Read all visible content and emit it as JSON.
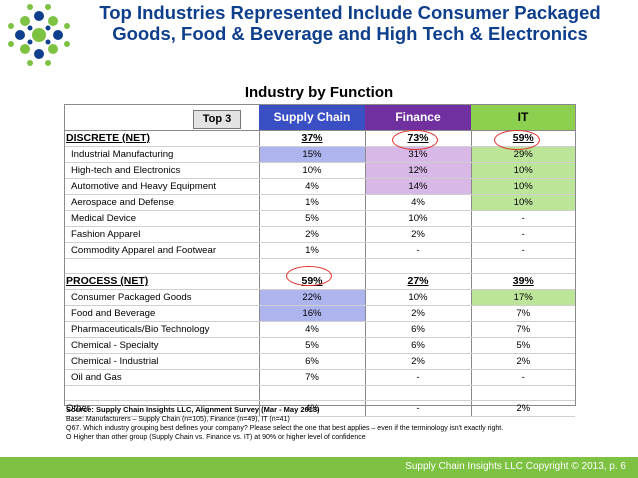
{
  "title": "Top Industries Represented Include Consumer Packaged Goods, Food & Beverage and High Tech & Electronics",
  "subtitle": "Industry by Function",
  "table": {
    "top_label": "Top 3",
    "columns": [
      "Supply Chain",
      "Finance",
      "IT"
    ],
    "rows": [
      {
        "label": "DISCRETE (NET)",
        "sc": "37%",
        "fi": "73%",
        "it": "59%"
      },
      {
        "label": "Industrial Manufacturing",
        "sc": "15%",
        "fi": "31%",
        "it": "29%"
      },
      {
        "label": "High-tech and Electronics",
        "sc": "10%",
        "fi": "12%",
        "it": "10%"
      },
      {
        "label": "Automotive and Heavy Equipment",
        "sc": "4%",
        "fi": "14%",
        "it": "10%"
      },
      {
        "label": "Aerospace and Defense",
        "sc": "1%",
        "fi": "4%",
        "it": "10%"
      },
      {
        "label": "Medical Device",
        "sc": "5%",
        "fi": "10%",
        "it": "-"
      },
      {
        "label": "Fashion Apparel",
        "sc": "2%",
        "fi": "2%",
        "it": "-"
      },
      {
        "label": "Commodity Apparel and Footwear",
        "sc": "1%",
        "fi": "-",
        "it": "-"
      },
      {
        "label": "PROCESS (NET)",
        "sc": "59%",
        "fi": "27%",
        "it": "39%"
      },
      {
        "label": "Consumer Packaged Goods",
        "sc": "22%",
        "fi": "10%",
        "it": "17%"
      },
      {
        "label": "Food and Beverage",
        "sc": "16%",
        "fi": "2%",
        "it": "7%"
      },
      {
        "label": "Pharmaceuticals/Bio Technology",
        "sc": "4%",
        "fi": "6%",
        "it": "7%"
      },
      {
        "label": "Chemical - Specialty",
        "sc": "5%",
        "fi": "6%",
        "it": "5%"
      },
      {
        "label": "Chemical - Industrial",
        "sc": "6%",
        "fi": "2%",
        "it": "2%"
      },
      {
        "label": "Oil and Gas",
        "sc": "7%",
        "fi": "-",
        "it": "-"
      },
      {
        "label": "Other",
        "sc": "4%",
        "fi": "-",
        "it": "2%"
      }
    ]
  },
  "source": {
    "line1": "Source: Supply Chain Insights LLC, Alignment Survey (Mar - May 2013)",
    "line2": "Base: Manufacturers – Supply Chain (n=105), Finance (n=49), IT (n=41)",
    "line3": "Q67. Which industry grouping best defines your company? Please select the one that best applies – even if the terminology isn't exactly right.",
    "line4": "O Higher than other group (Supply Chain vs. Finance vs. IT) at 90% or higher level of confidence"
  },
  "footer": "Supply Chain Insights LLC Copyright © 2013, p. 6",
  "colors": {
    "supply_chain": "#3b4fc4",
    "finance": "#7030a0",
    "it": "#8bd14f",
    "footer": "#7dc242",
    "title": "#0e3f8c",
    "circle": "#e0302a"
  }
}
